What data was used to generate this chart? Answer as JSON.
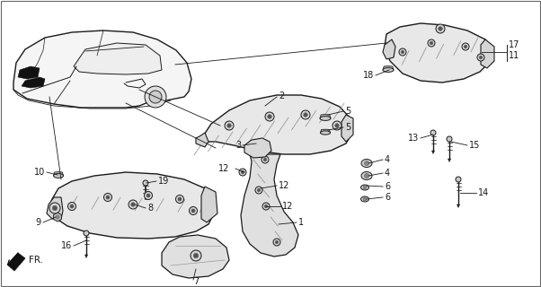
{
  "bg_color": "#ffffff",
  "line_color": "#1a1a1a",
  "fig_width": 6.02,
  "fig_height": 3.2,
  "dpi": 100,
  "label_fontsize": 7.0,
  "border_color": "#888888"
}
